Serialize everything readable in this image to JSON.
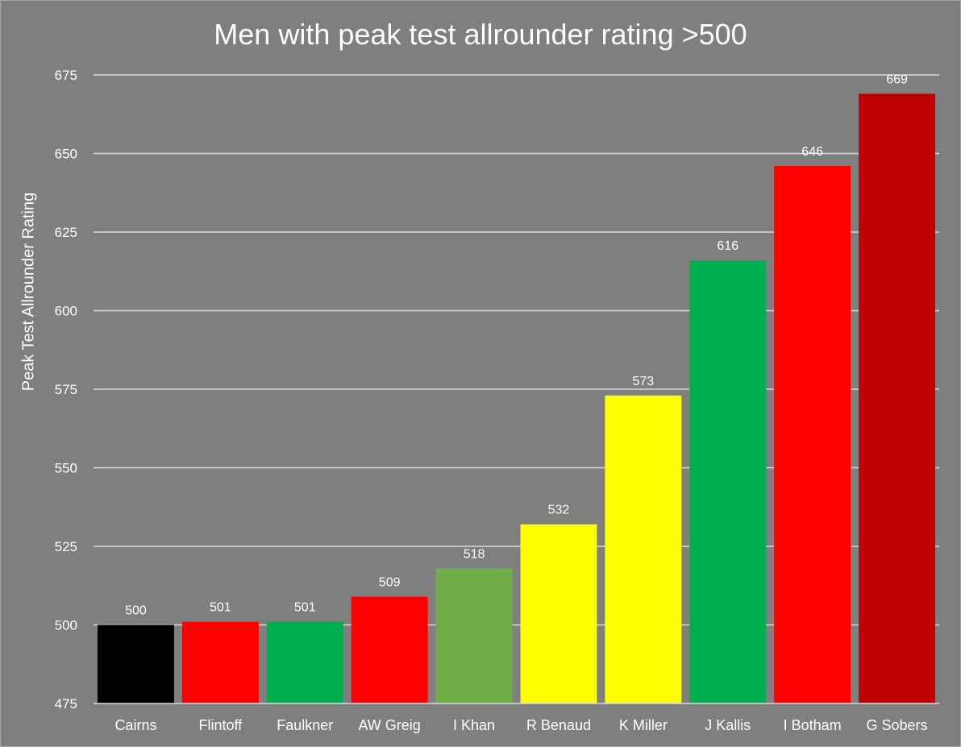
{
  "chart_data": {
    "type": "bar",
    "title": "Men with peak test allrounder rating >500",
    "xlabel": "",
    "ylabel": "Peak Test Allrounder Rating",
    "categories": [
      "Cairns",
      "Flintoff",
      "Faulkner",
      "AW Greig",
      "I Khan",
      "R Benaud",
      "K Miller",
      "J Kallis",
      "I Botham",
      "G Sobers"
    ],
    "values": [
      500,
      501,
      501,
      509,
      518,
      532,
      573,
      616,
      646,
      669
    ],
    "bar_colors": [
      "#000000",
      "#ff0000",
      "#00b050",
      "#ff0000",
      "#70ad47",
      "#ffff00",
      "#ffff00",
      "#00b050",
      "#ff0000",
      "#c00000"
    ],
    "ylim": [
      475,
      675
    ],
    "yticks": [
      475,
      500,
      525,
      550,
      575,
      600,
      625,
      650,
      675
    ],
    "grid": true,
    "data_labels": true,
    "legend": "none",
    "colors": {
      "background": "#7f7f7f",
      "gridline": "#d9d9d9",
      "text": "#ffffff"
    }
  }
}
